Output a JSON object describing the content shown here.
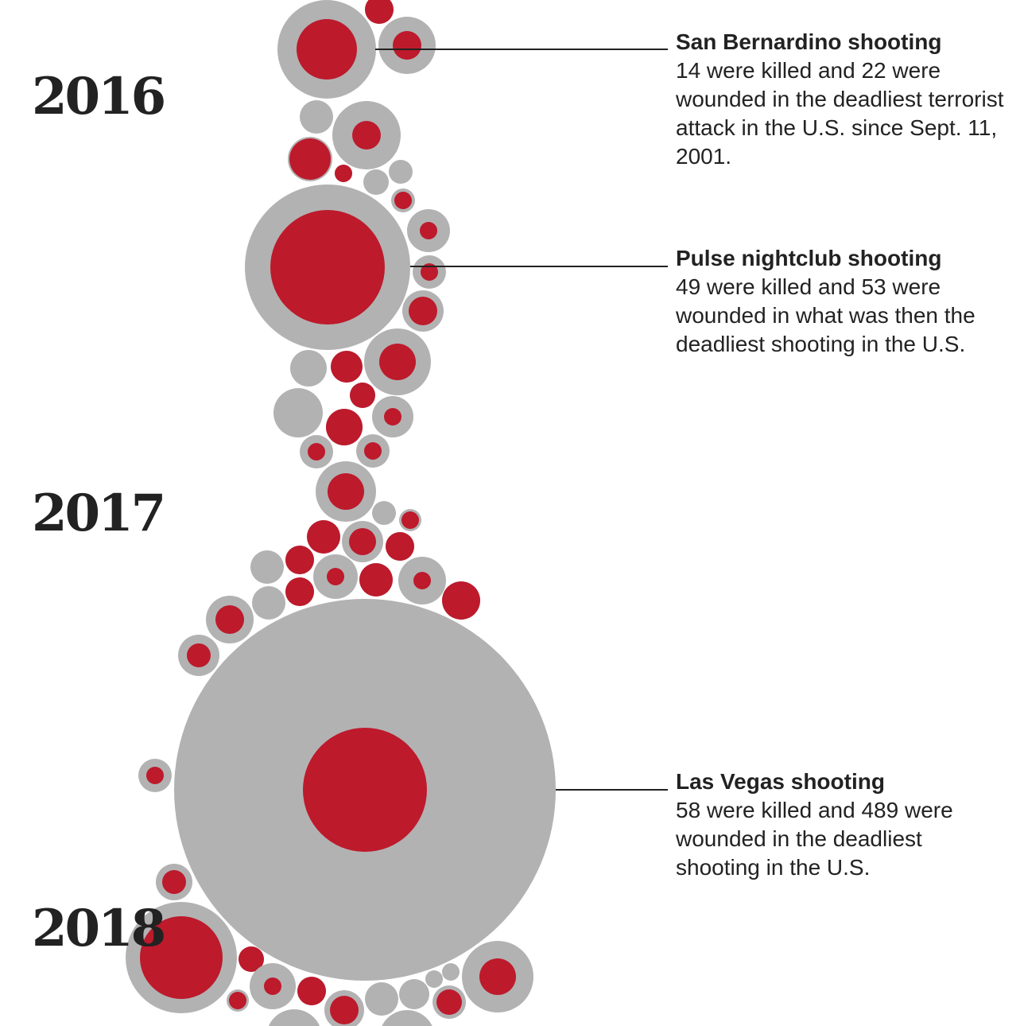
{
  "chart_data": {
    "type": "bubble",
    "encoding": {
      "outer_circle": "killed + wounded",
      "inner_circle": "killed"
    },
    "colors": {
      "total": "#b2b2b2",
      "killed": "#bd1a2c",
      "text": "#222222",
      "leader": "#222222"
    },
    "years": [
      "2016",
      "2017",
      "2018"
    ],
    "annotations": [
      {
        "title": "San Bernardino shooting",
        "text": "14 were killed and 22 were wounded in the deadliest terrorist attack in the U.S. since Sept. 11, 2001.",
        "killed": 14,
        "wounded": 22
      },
      {
        "title": "Pulse nightclub shooting",
        "text": "49 were killed and 53 were wounded in what was then the deadliest shooting in the U.S.",
        "killed": 49,
        "wounded": 53
      },
      {
        "title": "Las Vegas shooting",
        "text": "58 were killed and 489 were wounded in the deadliest shooting in the U.S.",
        "killed": 58,
        "wounded": 489
      }
    ]
  }
}
